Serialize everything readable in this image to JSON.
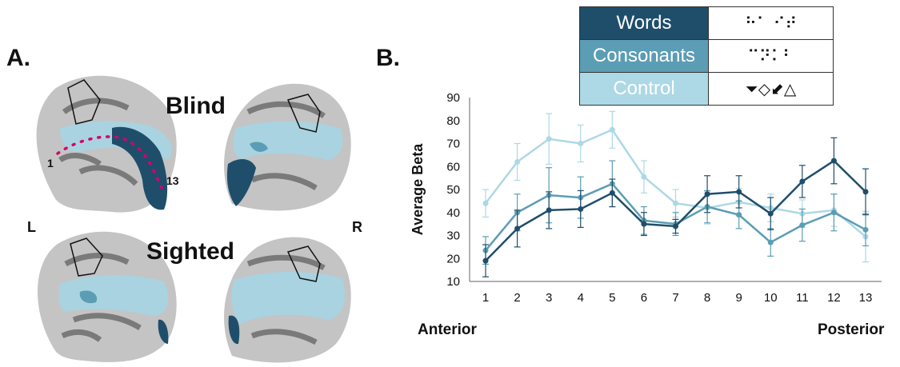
{
  "panel_a": {
    "label": "A.",
    "blind_title": "Blind",
    "sighted_title": "Sighted",
    "left_label": "L",
    "right_label": "R",
    "roi_start": "1",
    "roi_end": "13"
  },
  "panel_b": {
    "label": "B."
  },
  "legend": {
    "rows": [
      {
        "label": "Words",
        "color": "#1f4e6b",
        "braille": "⠓⠁ ⠊⠞"
      },
      {
        "label": "Consonants",
        "color": "#5b9db4",
        "braille": "⠉⠝⠅⠃"
      },
      {
        "label": "Control",
        "color": "#add8e6",
        "braille": "⏷◇⬋△"
      }
    ]
  },
  "axis_ends": {
    "left": "Anterior",
    "right": "Posterior"
  },
  "colors": {
    "words": "#1f4e6b",
    "consonants": "#5b9db4",
    "control": "#add8e6",
    "brain_gray": "#8c8c8c",
    "brain_light": "#c8c8c8"
  },
  "chart_data": {
    "type": "line",
    "title": "",
    "xlabel": "",
    "ylabel": "Average Beta",
    "ylim": [
      10,
      90
    ],
    "yticks": [
      10,
      20,
      30,
      40,
      50,
      60,
      70,
      80,
      90
    ],
    "x": [
      1,
      2,
      3,
      4,
      5,
      6,
      7,
      8,
      9,
      10,
      11,
      12,
      13
    ],
    "series": [
      {
        "name": "Words",
        "color": "#1f4e6b",
        "values": [
          19,
          33,
          41,
          41.5,
          48.5,
          35,
          34,
          48,
          49,
          39.5,
          53.5,
          62.5,
          49
        ],
        "errors": [
          7,
          8,
          8,
          8,
          6,
          5,
          3,
          8,
          7,
          7,
          7,
          10,
          10
        ]
      },
      {
        "name": "Consonants",
        "color": "#5b9db4",
        "values": [
          23.5,
          40,
          47.5,
          46.5,
          52.5,
          36.5,
          35,
          42.5,
          39,
          27,
          34.5,
          40,
          32.5
        ],
        "errors": [
          6,
          8,
          12,
          9,
          10,
          6,
          5,
          7,
          6,
          6,
          7,
          8,
          7
        ]
      },
      {
        "name": "Control",
        "color": "#add8e6",
        "values": [
          44,
          62,
          72,
          70,
          76,
          55.5,
          44,
          42,
          44.5,
          42,
          39.5,
          41,
          29.5
        ],
        "errors": [
          6,
          8,
          11,
          8,
          8,
          7,
          6,
          7,
          6,
          6,
          6,
          7,
          11
        ]
      }
    ]
  }
}
